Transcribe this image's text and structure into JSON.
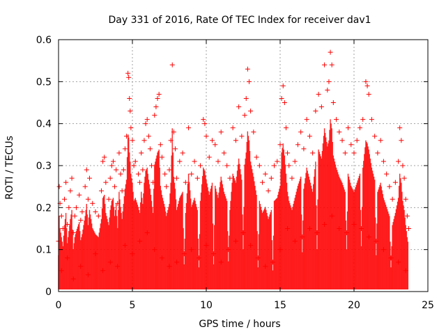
{
  "chart_data": {
    "type": "scatter",
    "title": "Day 331 of 2016, Rate Of TEC Index for receiver dav1",
    "xlabel": "GPS time / hours",
    "ylabel": "ROTI / TECUs",
    "xlim": [
      0,
      25
    ],
    "ylim": [
      0,
      0.6
    ],
    "x_ticks": [
      0,
      5,
      10,
      15,
      20,
      25
    ],
    "y_ticks": [
      0,
      0.1,
      0.2,
      0.3,
      0.4,
      0.5,
      0.6
    ],
    "x_tick_labels": [
      "0",
      "5",
      "10",
      "15",
      "20",
      "25"
    ],
    "y_tick_labels": [
      "0",
      "0.1",
      "0.2",
      "0.3",
      "0.4",
      "0.5",
      "0.6"
    ],
    "grid": true,
    "marker": "plus",
    "marker_color": "#ff0000",
    "series": [
      {
        "points": [
          [
            0.0,
            0.12
          ],
          [
            0.05,
            0.25
          ],
          [
            0.1,
            0.21
          ],
          [
            0.2,
            0.18
          ],
          [
            0.3,
            0.15
          ],
          [
            0.4,
            0.22
          ],
          [
            0.5,
            0.26
          ],
          [
            0.6,
            0.16
          ],
          [
            0.7,
            0.2
          ],
          [
            0.8,
            0.24
          ],
          [
            0.9,
            0.27
          ],
          [
            1.0,
            0.14
          ],
          [
            1.1,
            0.18
          ],
          [
            1.2,
            0.2
          ],
          [
            1.4,
            0.23
          ],
          [
            1.5,
            0.17
          ],
          [
            1.6,
            0.19
          ],
          [
            1.8,
            0.25
          ],
          [
            1.9,
            0.29
          ],
          [
            2.0,
            0.22
          ],
          [
            2.1,
            0.27
          ],
          [
            2.3,
            0.21
          ],
          [
            2.5,
            0.19
          ],
          [
            2.7,
            0.18
          ],
          [
            2.9,
            0.24
          ],
          [
            3.0,
            0.31
          ],
          [
            3.1,
            0.32
          ],
          [
            3.2,
            0.26
          ],
          [
            3.4,
            0.22
          ],
          [
            3.5,
            0.27
          ],
          [
            3.6,
            0.3
          ],
          [
            3.7,
            0.31
          ],
          [
            3.8,
            0.25
          ],
          [
            3.9,
            0.29
          ],
          [
            4.0,
            0.21
          ],
          [
            4.1,
            0.33
          ],
          [
            4.2,
            0.28
          ],
          [
            4.3,
            0.24
          ],
          [
            4.4,
            0.29
          ],
          [
            4.5,
            0.34
          ],
          [
            4.6,
            0.37
          ],
          [
            4.7,
            0.52
          ],
          [
            4.75,
            0.51
          ],
          [
            4.8,
            0.46
          ],
          [
            4.85,
            0.43
          ],
          [
            4.9,
            0.39
          ],
          [
            5.0,
            0.36
          ],
          [
            5.1,
            0.3
          ],
          [
            5.2,
            0.31
          ],
          [
            5.4,
            0.28
          ],
          [
            5.5,
            0.26
          ],
          [
            5.6,
            0.33
          ],
          [
            5.7,
            0.29
          ],
          [
            5.8,
            0.36
          ],
          [
            5.9,
            0.4
          ],
          [
            6.0,
            0.41
          ],
          [
            6.1,
            0.37
          ],
          [
            6.2,
            0.34
          ],
          [
            6.3,
            0.3
          ],
          [
            6.4,
            0.26
          ],
          [
            6.5,
            0.42
          ],
          [
            6.6,
            0.44
          ],
          [
            6.7,
            0.46
          ],
          [
            6.8,
            0.47
          ],
          [
            6.9,
            0.35
          ],
          [
            7.0,
            0.32
          ],
          [
            7.2,
            0.28
          ],
          [
            7.3,
            0.25
          ],
          [
            7.5,
            0.29
          ],
          [
            7.6,
            0.36
          ],
          [
            7.7,
            0.54
          ],
          [
            7.8,
            0.38
          ],
          [
            7.9,
            0.34
          ],
          [
            8.0,
            0.27
          ],
          [
            8.2,
            0.31
          ],
          [
            8.4,
            0.33
          ],
          [
            8.6,
            0.26
          ],
          [
            8.8,
            0.39
          ],
          [
            9.0,
            0.28
          ],
          [
            9.2,
            0.31
          ],
          [
            9.4,
            0.27
          ],
          [
            9.6,
            0.3
          ],
          [
            9.8,
            0.41
          ],
          [
            9.9,
            0.4
          ],
          [
            10.0,
            0.37
          ],
          [
            10.2,
            0.32
          ],
          [
            10.4,
            0.36
          ],
          [
            10.6,
            0.35
          ],
          [
            10.8,
            0.31
          ],
          [
            11.0,
            0.38
          ],
          [
            11.2,
            0.33
          ],
          [
            11.4,
            0.3
          ],
          [
            11.6,
            0.27
          ],
          [
            11.8,
            0.39
          ],
          [
            12.0,
            0.36
          ],
          [
            12.2,
            0.44
          ],
          [
            12.4,
            0.37
          ],
          [
            12.6,
            0.42
          ],
          [
            12.7,
            0.46
          ],
          [
            12.8,
            0.53
          ],
          [
            12.9,
            0.5
          ],
          [
            13.0,
            0.43
          ],
          [
            13.2,
            0.38
          ],
          [
            13.4,
            0.32
          ],
          [
            13.6,
            0.3
          ],
          [
            13.8,
            0.26
          ],
          [
            14.0,
            0.28
          ],
          [
            14.2,
            0.24
          ],
          [
            14.4,
            0.27
          ],
          [
            14.6,
            0.3
          ],
          [
            14.8,
            0.31
          ],
          [
            15.0,
            0.35
          ],
          [
            15.1,
            0.46
          ],
          [
            15.2,
            0.49
          ],
          [
            15.3,
            0.45
          ],
          [
            15.4,
            0.39
          ],
          [
            15.5,
            0.33
          ],
          [
            15.6,
            0.3
          ],
          [
            15.8,
            0.27
          ],
          [
            16.0,
            0.31
          ],
          [
            16.2,
            0.35
          ],
          [
            16.4,
            0.38
          ],
          [
            16.6,
            0.34
          ],
          [
            16.8,
            0.41
          ],
          [
            17.0,
            0.37
          ],
          [
            17.2,
            0.33
          ],
          [
            17.4,
            0.43
          ],
          [
            17.6,
            0.47
          ],
          [
            17.8,
            0.44
          ],
          [
            18.0,
            0.54
          ],
          [
            18.2,
            0.48
          ],
          [
            18.3,
            0.5
          ],
          [
            18.4,
            0.57
          ],
          [
            18.5,
            0.54
          ],
          [
            18.6,
            0.45
          ],
          [
            18.8,
            0.41
          ],
          [
            19.0,
            0.38
          ],
          [
            19.2,
            0.36
          ],
          [
            19.4,
            0.33
          ],
          [
            19.6,
            0.39
          ],
          [
            19.8,
            0.35
          ],
          [
            20.0,
            0.33
          ],
          [
            20.2,
            0.36
          ],
          [
            20.4,
            0.39
          ],
          [
            20.6,
            0.41
          ],
          [
            20.8,
            0.5
          ],
          [
            20.9,
            0.49
          ],
          [
            21.0,
            0.47
          ],
          [
            21.2,
            0.41
          ],
          [
            21.4,
            0.37
          ],
          [
            21.6,
            0.33
          ],
          [
            21.8,
            0.36
          ],
          [
            22.0,
            0.31
          ],
          [
            22.2,
            0.28
          ],
          [
            22.4,
            0.25
          ],
          [
            22.6,
            0.22
          ],
          [
            22.8,
            0.26
          ],
          [
            23.0,
            0.31
          ],
          [
            23.1,
            0.39
          ],
          [
            23.2,
            0.36
          ],
          [
            23.3,
            0.3
          ],
          [
            23.4,
            0.27
          ],
          [
            23.5,
            0.22
          ],
          [
            23.6,
            0.18
          ],
          [
            23.7,
            0.15
          ],
          [
            0.2,
            0.05
          ],
          [
            0.6,
            0.08
          ],
          [
            1.0,
            0.03
          ],
          [
            1.5,
            0.06
          ],
          [
            2.0,
            0.04
          ],
          [
            2.5,
            0.09
          ],
          [
            3.0,
            0.05
          ],
          [
            3.5,
            0.07
          ],
          [
            4.0,
            0.06
          ],
          [
            4.5,
            0.11
          ],
          [
            5.0,
            0.09
          ],
          [
            5.5,
            0.12
          ],
          [
            6.0,
            0.14
          ],
          [
            6.5,
            0.1
          ],
          [
            7.0,
            0.08
          ],
          [
            7.5,
            0.06
          ],
          [
            8.0,
            0.07
          ],
          [
            8.5,
            0.09
          ],
          [
            9.0,
            0.1
          ],
          [
            9.5,
            0.08
          ],
          [
            10.0,
            0.11
          ],
          [
            10.5,
            0.09
          ],
          [
            11.0,
            0.07
          ],
          [
            11.5,
            0.1
          ],
          [
            12.0,
            0.12
          ],
          [
            12.5,
            0.14
          ],
          [
            13.0,
            0.11
          ],
          [
            13.5,
            0.08
          ],
          [
            14.0,
            0.06
          ],
          [
            14.5,
            0.07
          ],
          [
            15.0,
            0.1
          ],
          [
            15.5,
            0.15
          ],
          [
            16.0,
            0.12
          ],
          [
            16.5,
            0.13
          ],
          [
            17.0,
            0.15
          ],
          [
            17.5,
            0.14
          ],
          [
            18.0,
            0.16
          ],
          [
            18.5,
            0.18
          ],
          [
            19.0,
            0.15
          ],
          [
            19.5,
            0.14
          ],
          [
            20.0,
            0.16
          ],
          [
            20.5,
            0.15
          ],
          [
            21.0,
            0.13
          ],
          [
            21.5,
            0.12
          ],
          [
            22.0,
            0.1
          ],
          [
            22.5,
            0.08
          ],
          [
            23.0,
            0.07
          ],
          [
            23.5,
            0.05
          ]
        ]
      }
    ]
  }
}
